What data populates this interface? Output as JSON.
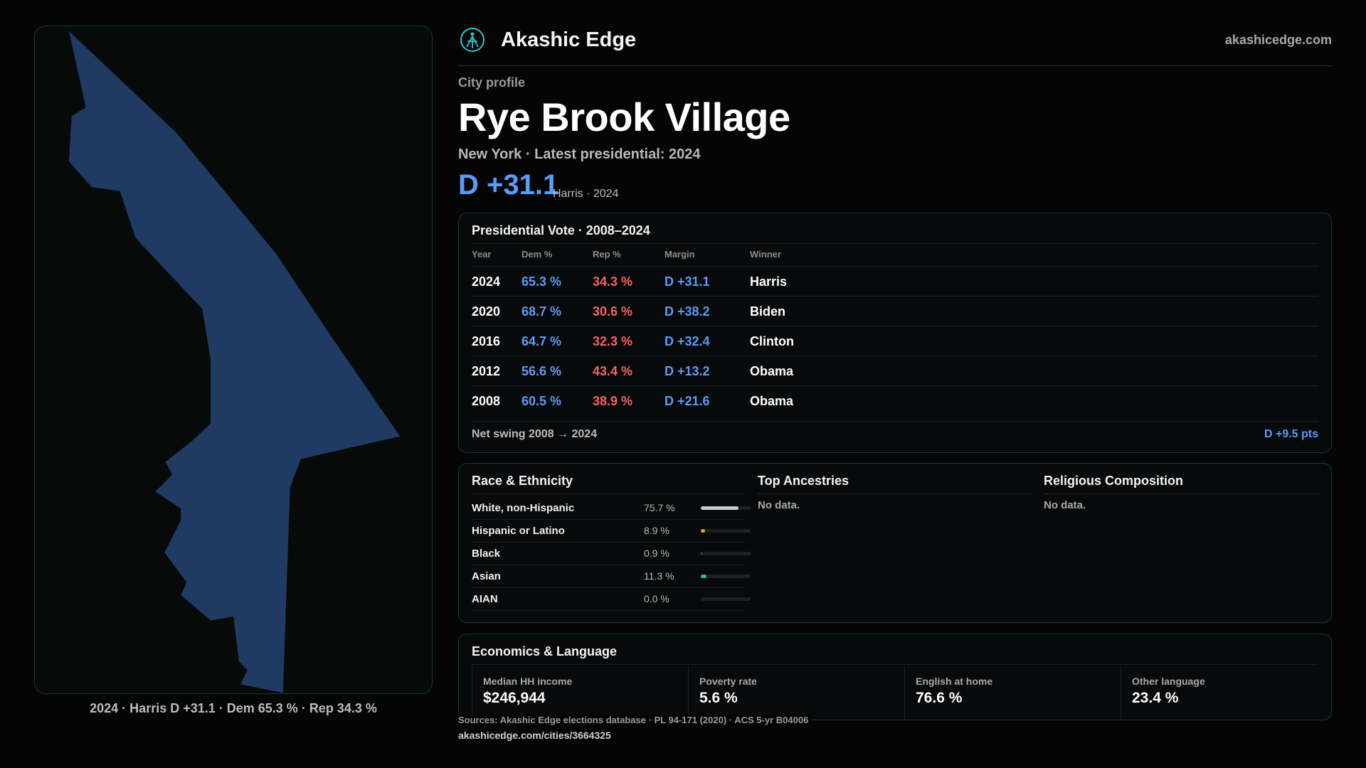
{
  "map": {
    "caption": "2024 · Harris D +31.1 · Dem 65.3 % · Rep 34.3 %",
    "fill_color": "#1f3b63"
  },
  "header": {
    "brand": "Akashic Edge",
    "site": "akashicedge.com",
    "logo_icon": "compass-logo-icon"
  },
  "profile": {
    "kicker": "City profile",
    "title": "Rye Brook Village",
    "subtitle": "New York  · Latest presidential: 2024",
    "margin": "D +31.1",
    "margin_note": "Harris · 2024"
  },
  "vote": {
    "title": "Presidential Vote · 2008–2024",
    "headers": {
      "year": "Year",
      "dem": "Dem %",
      "rep": "Rep %",
      "margin": "Margin",
      "winner": "Winner"
    },
    "rows": [
      {
        "year": "2024",
        "dem": "65.3 %",
        "rep": "34.3 %",
        "margin": "D +31.1",
        "winner": "Harris"
      },
      {
        "year": "2020",
        "dem": "68.7 %",
        "rep": "30.6 %",
        "margin": "D +38.2",
        "winner": "Biden"
      },
      {
        "year": "2016",
        "dem": "64.7 %",
        "rep": "32.3 %",
        "margin": "D +32.4",
        "winner": "Clinton"
      },
      {
        "year": "2012",
        "dem": "56.6 %",
        "rep": "43.4 %",
        "margin": "D +13.2",
        "winner": "Obama"
      },
      {
        "year": "2008",
        "dem": "60.5 %",
        "rep": "38.9 %",
        "margin": "D +21.6",
        "winner": "Obama"
      }
    ],
    "swing_label": "Net swing 2008 → 2024",
    "swing_value": "D +9.5 pts"
  },
  "race": {
    "title": "Race & Ethnicity",
    "rows": [
      {
        "label": "White, non-Hispanic",
        "pct": "75.7 %",
        "value": 75.7,
        "color": "#c8ccd0"
      },
      {
        "label": "Hispanic or Latino",
        "pct": "8.9 %",
        "value": 8.9,
        "color": "#e0a326"
      },
      {
        "label": "Black",
        "pct": "0.9 %",
        "value": 0.9,
        "color": "#9a9a9a"
      },
      {
        "label": "Asian",
        "pct": "11.3 %",
        "value": 11.3,
        "color": "#2fbf8f"
      },
      {
        "label": "AIAN",
        "pct": "0.0 %",
        "value": 0.0,
        "color": "#9a9a9a"
      }
    ]
  },
  "ancestries": {
    "title": "Top Ancestries",
    "empty": "No data."
  },
  "religion": {
    "title": "Religious Composition",
    "empty": "No data."
  },
  "economics": {
    "title": "Economics & Language",
    "stats": [
      {
        "label": "Median HH income",
        "value": "$246,944"
      },
      {
        "label": "Poverty rate",
        "value": "5.6 %"
      },
      {
        "label": "English at home",
        "value": "76.6 %"
      },
      {
        "label": "Other language",
        "value": "23.4 %"
      }
    ]
  },
  "footer": {
    "sources": "Sources: Akashic Edge elections database · PL 94-171 (2020) · ACS 5-yr B04006",
    "url": "akashicedge.com/cities/3664325"
  },
  "colors": {
    "dem": "#5b9cf4",
    "rep": "#f26565",
    "accent_border": "#133a3f"
  }
}
